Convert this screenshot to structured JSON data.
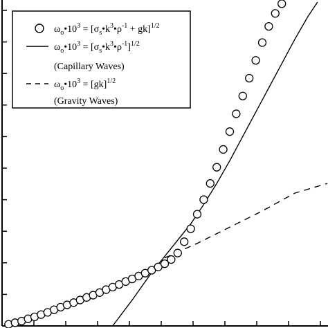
{
  "chart_data": {
    "type": "line",
    "title": "",
    "xlabel": "",
    "ylabel": "",
    "grid": false,
    "legend_placement": "top-left",
    "series": [
      {
        "role": "measured",
        "marker": "open-circle",
        "line": "none",
        "legend": {
          "omega": "ω",
          "omega_sub": "o",
          "lhs_rest": "•10",
          "lhs_exp": "3",
          "rhs_open": " = [σ",
          "sigma_sub": "s",
          "k_part": "•k",
          "k_exp": "3",
          "rho_part": "•ρ",
          "rho_exp": "-1",
          "tail": " + gk]",
          "outer_exp": "1/2",
          "note": ""
        },
        "points": [
          [
            0.02,
            0.005
          ],
          [
            0.04,
            0.01
          ],
          [
            0.06,
            0.015
          ],
          [
            0.08,
            0.022
          ],
          [
            0.1,
            0.028
          ],
          [
            0.12,
            0.035
          ],
          [
            0.14,
            0.042
          ],
          [
            0.16,
            0.05
          ],
          [
            0.18,
            0.058
          ],
          [
            0.2,
            0.065
          ],
          [
            0.22,
            0.072
          ],
          [
            0.24,
            0.08
          ],
          [
            0.26,
            0.088
          ],
          [
            0.28,
            0.095
          ],
          [
            0.3,
            0.103
          ],
          [
            0.32,
            0.112
          ],
          [
            0.34,
            0.12
          ],
          [
            0.36,
            0.128
          ],
          [
            0.38,
            0.137
          ],
          [
            0.4,
            0.145
          ],
          [
            0.42,
            0.154
          ],
          [
            0.44,
            0.163
          ],
          [
            0.46,
            0.172
          ],
          [
            0.48,
            0.182
          ],
          [
            0.5,
            0.192
          ],
          [
            0.52,
            0.205
          ],
          [
            0.54,
            0.225
          ],
          [
            0.56,
            0.26
          ],
          [
            0.58,
            0.3
          ],
          [
            0.6,
            0.345
          ],
          [
            0.62,
            0.39
          ],
          [
            0.64,
            0.44
          ],
          [
            0.66,
            0.49
          ],
          [
            0.68,
            0.545
          ],
          [
            0.7,
            0.6
          ],
          [
            0.72,
            0.655
          ],
          [
            0.74,
            0.71
          ],
          [
            0.76,
            0.765
          ],
          [
            0.78,
            0.82
          ],
          [
            0.8,
            0.875
          ],
          [
            0.82,
            0.925
          ],
          [
            0.84,
            0.965
          ],
          [
            0.86,
            0.995
          ]
        ]
      },
      {
        "role": "capillary",
        "marker": "none",
        "line": "solid",
        "legend": {
          "omega": "ω",
          "omega_sub": "o",
          "lhs_rest": "•10",
          "lhs_exp": "3",
          "rhs_open": " = [σ",
          "sigma_sub": "s",
          "k_part": "•k",
          "k_exp": "3",
          "rho_part": "•ρ",
          "rho_exp": "-1",
          "tail": "]",
          "outer_exp": "1/2",
          "note": "(Capillary Waves)"
        },
        "points": [
          [
            0.34,
            0.0
          ],
          [
            0.4,
            0.08
          ],
          [
            0.46,
            0.165
          ],
          [
            0.5,
            0.215
          ],
          [
            0.54,
            0.265
          ],
          [
            0.58,
            0.315
          ],
          [
            0.62,
            0.375
          ],
          [
            0.66,
            0.44
          ],
          [
            0.7,
            0.51
          ],
          [
            0.74,
            0.585
          ],
          [
            0.78,
            0.66
          ],
          [
            0.82,
            0.735
          ],
          [
            0.86,
            0.81
          ],
          [
            0.9,
            0.885
          ],
          [
            0.94,
            0.955
          ],
          [
            0.97,
            1.0
          ]
        ]
      },
      {
        "role": "gravity",
        "marker": "none",
        "line": "dashed",
        "legend": {
          "omega": "ω",
          "omega_sub": "o",
          "lhs_rest": "•10",
          "lhs_exp": "3",
          "rhs_open": " = [gk]",
          "outer_exp": "1/2",
          "note": "(Gravity Waves)"
        },
        "points": [
          [
            0.5,
            0.21
          ],
          [
            0.6,
            0.255
          ],
          [
            0.7,
            0.305
          ],
          [
            0.8,
            0.355
          ],
          [
            0.9,
            0.41
          ],
          [
            1.0,
            0.44
          ]
        ]
      }
    ]
  }
}
